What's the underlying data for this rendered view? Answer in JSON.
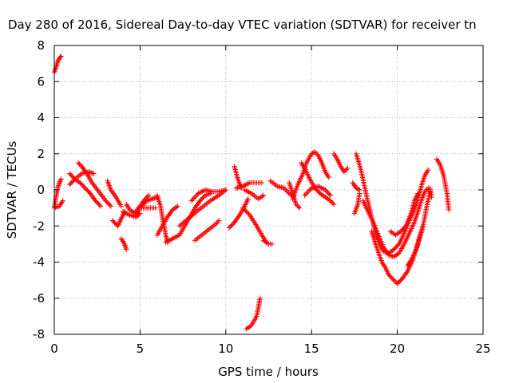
{
  "chart_data": {
    "type": "scatter",
    "title": "Day 280 of 2016, Sidereal Day-to-day VTEC variation (SDTVAR) for receiver tn",
    "xlabel": "GPS time / hours",
    "ylabel": "SDTVAR / TECUs",
    "xlim": [
      0,
      25
    ],
    "ylim": [
      -8,
      8
    ],
    "xticks": [
      0,
      5,
      10,
      15,
      20,
      25
    ],
    "yticks": [
      -8,
      -6,
      -4,
      -2,
      0,
      2,
      4,
      6,
      8
    ],
    "grid": true,
    "marker": "+",
    "color": "#ff0000",
    "series": [
      {
        "segments": [
          [
            [
              0.0,
              6.5
            ],
            [
              0.1,
              6.8
            ],
            [
              0.2,
              7.1
            ],
            [
              0.3,
              7.3
            ],
            [
              0.4,
              7.4
            ]
          ],
          [
            [
              0.0,
              -1.0
            ],
            [
              0.1,
              -0.4
            ],
            [
              0.2,
              0.1
            ],
            [
              0.3,
              0.4
            ],
            [
              0.4,
              0.6
            ]
          ],
          [
            [
              0.0,
              -1.0
            ],
            [
              0.3,
              -0.9
            ],
            [
              0.5,
              -0.6
            ]
          ],
          [
            [
              0.9,
              0.9
            ],
            [
              1.2,
              0.6
            ],
            [
              1.5,
              0.4
            ],
            [
              1.8,
              0.1
            ],
            [
              2.1,
              -0.2
            ],
            [
              2.4,
              -0.6
            ],
            [
              2.7,
              -0.9
            ]
          ],
          [
            [
              0.9,
              0.3
            ],
            [
              1.2,
              0.6
            ],
            [
              1.6,
              0.9
            ],
            [
              2.0,
              1.0
            ],
            [
              2.3,
              0.9
            ]
          ],
          [
            [
              1.4,
              1.5
            ],
            [
              1.6,
              1.3
            ],
            [
              1.9,
              0.9
            ],
            [
              2.2,
              0.4
            ],
            [
              2.6,
              -0.1
            ],
            [
              3.0,
              -0.6
            ],
            [
              3.3,
              -0.9
            ]
          ],
          [
            [
              3.1,
              0.5
            ],
            [
              3.3,
              0.0
            ],
            [
              3.6,
              -0.4
            ],
            [
              3.9,
              -0.9
            ]
          ],
          [
            [
              3.4,
              -1.7
            ],
            [
              3.7,
              -2.0
            ],
            [
              3.9,
              -1.6
            ],
            [
              4.1,
              -1.2
            ]
          ],
          [
            [
              3.9,
              -2.7
            ],
            [
              4.1,
              -3.0
            ],
            [
              4.2,
              -3.3
            ]
          ],
          [
            [
              4.2,
              -0.8
            ],
            [
              4.4,
              -1.1
            ],
            [
              4.7,
              -1.3
            ],
            [
              4.9,
              -1.0
            ]
          ],
          [
            [
              4.0,
              -1.2
            ],
            [
              4.4,
              -1.4
            ],
            [
              4.8,
              -1.5
            ],
            [
              5.0,
              -1.3
            ]
          ],
          [
            [
              4.8,
              -1.4
            ],
            [
              5.0,
              -0.9
            ],
            [
              5.3,
              -0.5
            ],
            [
              5.5,
              -0.3
            ]
          ],
          [
            [
              5.1,
              -1.0
            ],
            [
              5.5,
              -1.0
            ],
            [
              5.9,
              -1.0
            ]
          ],
          [
            [
              5.1,
              -0.9
            ],
            [
              5.4,
              -0.6
            ],
            [
              5.7,
              -0.5
            ],
            [
              6.0,
              -0.4
            ]
          ],
          [
            [
              6.0,
              -0.3
            ],
            [
              6.2,
              -0.9
            ],
            [
              6.3,
              -1.5
            ],
            [
              6.4,
              -2.0
            ],
            [
              6.5,
              -2.5
            ],
            [
              6.6,
              -2.9
            ]
          ],
          [
            [
              6.0,
              -2.5
            ],
            [
              6.3,
              -2.0
            ],
            [
              6.6,
              -1.5
            ],
            [
              6.9,
              -1.1
            ],
            [
              7.2,
              -0.9
            ]
          ],
          [
            [
              6.5,
              -2.9
            ],
            [
              6.9,
              -2.7
            ],
            [
              7.3,
              -2.5
            ],
            [
              7.6,
              -2.0
            ],
            [
              7.9,
              -1.5
            ],
            [
              8.2,
              -1.0
            ],
            [
              8.5,
              -0.6
            ],
            [
              8.8,
              -0.3
            ],
            [
              9.1,
              -0.2
            ]
          ],
          [
            [
              7.3,
              -2.0
            ],
            [
              7.8,
              -1.6
            ],
            [
              8.3,
              -1.2
            ],
            [
              8.7,
              -0.9
            ],
            [
              9.1,
              -0.6
            ],
            [
              9.6,
              -0.3
            ],
            [
              10.0,
              0.0
            ]
          ],
          [
            [
              8.0,
              -0.6
            ],
            [
              8.4,
              -0.2
            ],
            [
              8.8,
              0.0
            ],
            [
              9.2,
              -0.1
            ],
            [
              9.6,
              -0.1
            ],
            [
              10.0,
              0.0
            ]
          ],
          [
            [
              8.2,
              -2.8
            ],
            [
              8.6,
              -2.5
            ],
            [
              9.0,
              -2.2
            ],
            [
              9.4,
              -1.9
            ],
            [
              9.6,
              -1.7
            ]
          ],
          [
            [
              10.2,
              -2.1
            ],
            [
              10.5,
              -1.8
            ],
            [
              10.8,
              -1.4
            ],
            [
              11.1,
              -0.9
            ],
            [
              11.3,
              -0.5
            ]
          ],
          [
            [
              10.5,
              1.3
            ],
            [
              10.7,
              0.6
            ],
            [
              10.9,
              0.1
            ]
          ],
          [
            [
              10.6,
              0.1
            ],
            [
              11.0,
              0.2
            ],
            [
              11.4,
              0.4
            ],
            [
              11.8,
              0.4
            ],
            [
              12.1,
              0.4
            ]
          ],
          [
            [
              11.0,
              -1.0
            ],
            [
              11.4,
              -1.4
            ],
            [
              11.8,
              -2.0
            ],
            [
              12.1,
              -2.5
            ],
            [
              12.3,
              -2.8
            ]
          ],
          [
            [
              11.1,
              0.0
            ],
            [
              11.5,
              -0.2
            ],
            [
              11.9,
              -0.5
            ],
            [
              12.2,
              -0.3
            ]
          ],
          [
            [
              12.2,
              -2.8
            ],
            [
              12.5,
              -3.0
            ],
            [
              12.7,
              -3.0
            ]
          ],
          [
            [
              11.2,
              -7.7
            ],
            [
              11.5,
              -7.5
            ],
            [
              11.8,
              -7.0
            ],
            [
              11.9,
              -6.5
            ],
            [
              12.0,
              -6.0
            ]
          ],
          [
            [
              12.6,
              0.5
            ],
            [
              13.0,
              0.2
            ],
            [
              13.4,
              0.1
            ],
            [
              13.8,
              -0.3
            ]
          ],
          [
            [
              13.7,
              0.4
            ],
            [
              13.9,
              -0.2
            ],
            [
              14.1,
              -0.8
            ],
            [
              14.3,
              -1.0
            ]
          ],
          [
            [
              13.9,
              -0.5
            ],
            [
              14.2,
              0.3
            ],
            [
              14.5,
              0.9
            ],
            [
              14.7,
              1.5
            ],
            [
              15.0,
              2.0
            ],
            [
              15.2,
              2.1
            ],
            [
              15.4,
              1.9
            ],
            [
              15.6,
              1.5
            ],
            [
              15.8,
              1.0
            ],
            [
              16.0,
              0.7
            ]
          ],
          [
            [
              14.4,
              1.5
            ],
            [
              14.6,
              1.2
            ],
            [
              14.9,
              0.6
            ],
            [
              15.2,
              0.1
            ],
            [
              15.5,
              -0.2
            ],
            [
              15.8,
              -0.4
            ],
            [
              16.1,
              -0.6
            ],
            [
              16.3,
              -0.8
            ]
          ],
          [
            [
              14.6,
              -0.3
            ],
            [
              15.0,
              0.1
            ],
            [
              15.4,
              0.2
            ],
            [
              15.8,
              0.0
            ],
            [
              16.1,
              -0.3
            ]
          ],
          [
            [
              16.3,
              2.0
            ],
            [
              16.5,
              1.7
            ],
            [
              16.7,
              1.3
            ],
            [
              16.9,
              1.0
            ],
            [
              17.1,
              1.2
            ]
          ],
          [
            [
              17.4,
              0.4
            ],
            [
              17.6,
              0.1
            ],
            [
              17.8,
              0.0
            ]
          ],
          [
            [
              17.5,
              -1.3
            ],
            [
              17.7,
              -0.8
            ],
            [
              17.8,
              -0.2
            ]
          ],
          [
            [
              17.6,
              2.0
            ],
            [
              17.8,
              1.4
            ],
            [
              18.0,
              0.6
            ],
            [
              18.2,
              -0.3
            ],
            [
              18.4,
              -1.1
            ],
            [
              18.6,
              -1.9
            ],
            [
              18.8,
              -2.6
            ],
            [
              19.0,
              -3.1
            ],
            [
              19.2,
              -3.4
            ],
            [
              19.5,
              -3.5
            ],
            [
              19.8,
              -3.3
            ],
            [
              20.1,
              -3.0
            ],
            [
              20.4,
              -2.4
            ],
            [
              20.7,
              -1.7
            ],
            [
              21.0,
              -1.1
            ],
            [
              21.2,
              -0.5
            ],
            [
              21.4,
              0.2
            ],
            [
              21.6,
              0.8
            ],
            [
              21.8,
              1.1
            ]
          ],
          [
            [
              18.0,
              -0.6
            ],
            [
              18.3,
              -1.2
            ],
            [
              18.6,
              -1.8
            ],
            [
              18.9,
              -2.5
            ],
            [
              19.2,
              -3.2
            ],
            [
              19.5,
              -3.6
            ],
            [
              19.8,
              -3.7
            ],
            [
              20.1,
              -3.5
            ],
            [
              20.4,
              -3.0
            ],
            [
              20.7,
              -2.4
            ],
            [
              21.0,
              -1.8
            ],
            [
              21.2,
              -1.2
            ],
            [
              21.4,
              -0.6
            ],
            [
              21.6,
              -0.1
            ],
            [
              21.8,
              0.1
            ]
          ],
          [
            [
              18.5,
              -2.3
            ],
            [
              18.8,
              -3.2
            ],
            [
              19.1,
              -4.0
            ],
            [
              19.3,
              -4.3
            ],
            [
              19.5,
              -4.7
            ],
            [
              19.8,
              -5.0
            ],
            [
              20.0,
              -5.2
            ],
            [
              20.3,
              -4.9
            ],
            [
              20.6,
              -4.5
            ],
            [
              20.9,
              -3.9
            ],
            [
              21.2,
              -3.0
            ],
            [
              21.5,
              -2.0
            ],
            [
              21.7,
              -1.0
            ],
            [
              21.9,
              -0.1
            ]
          ],
          [
            [
              19.6,
              -2.3
            ],
            [
              19.9,
              -2.5
            ],
            [
              20.2,
              -2.3
            ],
            [
              20.5,
              -2.0
            ],
            [
              20.8,
              -1.3
            ],
            [
              21.0,
              -0.6
            ],
            [
              21.2,
              -0.2
            ]
          ],
          [
            [
              20.6,
              -4.2
            ],
            [
              20.8,
              -3.9
            ],
            [
              21.1,
              -3.3
            ],
            [
              21.3,
              -2.6
            ],
            [
              21.5,
              -2.0
            ]
          ],
          [
            [
              21.9,
              0.1
            ],
            [
              22.0,
              -0.4
            ]
          ],
          [
            [
              22.3,
              1.7
            ],
            [
              22.5,
              1.4
            ],
            [
              22.7,
              0.8
            ],
            [
              22.9,
              -0.2
            ],
            [
              23.0,
              -1.1
            ]
          ]
        ]
      }
    ]
  }
}
